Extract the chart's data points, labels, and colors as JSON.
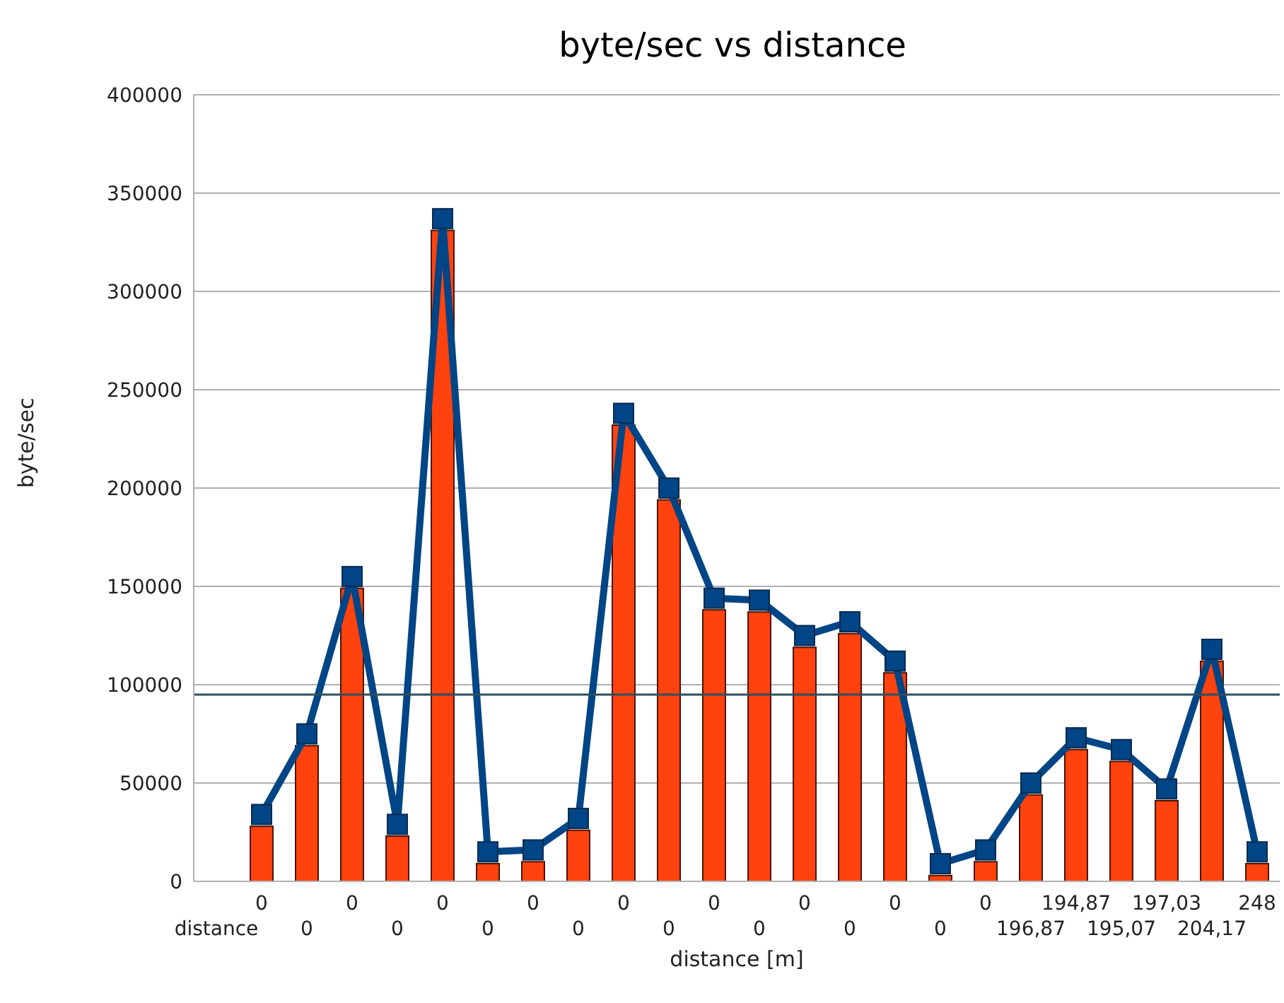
{
  "chart_data": {
    "type": "bar",
    "title": "byte/sec vs distance",
    "xlabel": "distance [m]",
    "ylabel": "byte/sec",
    "categories": [
      "distance",
      "0",
      "0",
      "0",
      "0",
      "0",
      "0",
      "0",
      "0",
      "0",
      "0",
      "0",
      "0",
      "0",
      "0",
      "0",
      "0",
      "0",
      "196,87",
      "194,87",
      "195,07",
      "197,03",
      "204,17",
      "248"
    ],
    "series": [
      {
        "color": "#ff420e",
        "values": [
          null,
          28000,
          69000,
          149000,
          23000,
          331000,
          9000,
          10000,
          26000,
          232000,
          194000,
          138000,
          137000,
          119000,
          126000,
          106000,
          3000,
          10000,
          44000,
          67000,
          61000,
          41000,
          112000,
          9000
        ]
      },
      {
        "type": "line",
        "color": "#004586",
        "values": [
          null,
          34000,
          75000,
          155000,
          29000,
          337000,
          15000,
          16000,
          32000,
          238000,
          200000,
          144000,
          143000,
          125000,
          132000,
          112000,
          9000,
          16000,
          50000,
          73000,
          67000,
          47000,
          118000,
          15000
        ]
      }
    ],
    "ylim": [
      0,
      400000
    ],
    "yticks": [
      0,
      50000,
      100000,
      150000,
      200000,
      250000,
      300000,
      350000,
      400000
    ],
    "grid": "y",
    "marker": "square",
    "line_style": "solid",
    "ref_lines": [
      {
        "axis": "y",
        "value": 95000,
        "color": "#2f4f5f"
      }
    ]
  }
}
